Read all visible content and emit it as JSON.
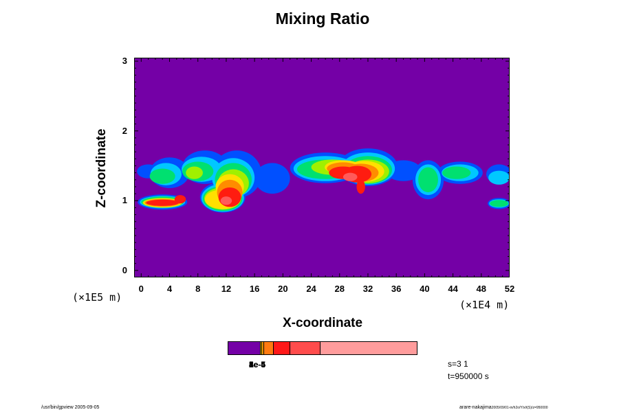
{
  "chart_data": {
    "type": "heatmap",
    "title": "Mixing Ratio",
    "xlabel": "X-coordinate",
    "ylabel": "Z-coordinate",
    "x_unit": "(×1E4 m)",
    "y_unit": "(×1E5 m)",
    "xlim": [
      -1,
      52
    ],
    "ylim": [
      -0.1,
      3.05
    ],
    "x_ticks": [
      "0",
      "4",
      "8",
      "12",
      "16",
      "20",
      "24",
      "28",
      "32",
      "36",
      "40",
      "44",
      "48",
      "52"
    ],
    "y_ticks": [
      "0",
      "1",
      "2",
      "3"
    ],
    "background_color": "#7400a6",
    "colorbar": {
      "segments": [
        {
          "color": "#7400a6",
          "width": 0.17
        },
        {
          "color": "#ffd000",
          "width": 0.01
        },
        {
          "color": "#ffa000",
          "width": 0.01
        },
        {
          "color": "#ff7a10",
          "width": 0.05
        },
        {
          "color": "#ff1818",
          "width": 0.09
        },
        {
          "color": "#ff4c4c",
          "width": 0.16
        },
        {
          "color": "#ff9c9c",
          "width": 0.51
        }
      ],
      "labels": [
        "1e-5",
        "2e-5",
        "3e-5",
        "4e-5",
        "5e-4"
      ]
    },
    "layers": [
      {
        "level": "low",
        "color": "#0050ff",
        "blobs": [
          {
            "x": 1.0,
            "z": 1.42,
            "rx": 1.6,
            "rz": 0.1
          },
          {
            "x": 4.0,
            "z": 1.4,
            "rx": 2.8,
            "rz": 0.22
          },
          {
            "x": 9.0,
            "z": 1.48,
            "rx": 3.2,
            "rz": 0.24
          },
          {
            "x": 13.5,
            "z": 1.38,
            "rx": 3.5,
            "rz": 0.34
          },
          {
            "x": 18.5,
            "z": 1.32,
            "rx": 2.5,
            "rz": 0.22
          },
          {
            "x": 26.0,
            "z": 1.47,
            "rx": 5.0,
            "rz": 0.22
          },
          {
            "x": 32.0,
            "z": 1.48,
            "rx": 4.2,
            "rz": 0.27
          },
          {
            "x": 37.0,
            "z": 1.43,
            "rx": 2.5,
            "rz": 0.15
          },
          {
            "x": 40.5,
            "z": 1.3,
            "rx": 2.2,
            "rz": 0.28
          },
          {
            "x": 45.0,
            "z": 1.4,
            "rx": 3.2,
            "rz": 0.16
          },
          {
            "x": 50.5,
            "z": 1.38,
            "rx": 1.8,
            "rz": 0.14
          },
          {
            "x": 3.0,
            "z": 0.98,
            "rx": 3.5,
            "rz": 0.11
          },
          {
            "x": 11.5,
            "z": 1.05,
            "rx": 3.2,
            "rz": 0.22
          },
          {
            "x": 50.5,
            "z": 0.96,
            "rx": 1.6,
            "rz": 0.08
          }
        ]
      },
      {
        "level": "mid-low",
        "color": "#00c8ff",
        "blobs": [
          {
            "x": 3.5,
            "z": 1.38,
            "rx": 2.2,
            "rz": 0.16
          },
          {
            "x": 8.5,
            "z": 1.45,
            "rx": 2.8,
            "rz": 0.18
          },
          {
            "x": 13.0,
            "z": 1.33,
            "rx": 3.0,
            "rz": 0.28
          },
          {
            "x": 26.0,
            "z": 1.46,
            "rx": 4.5,
            "rz": 0.18
          },
          {
            "x": 32.0,
            "z": 1.46,
            "rx": 3.8,
            "rz": 0.23
          },
          {
            "x": 40.5,
            "z": 1.3,
            "rx": 1.8,
            "rz": 0.22
          },
          {
            "x": 45.0,
            "z": 1.4,
            "rx": 2.6,
            "rz": 0.12
          },
          {
            "x": 50.5,
            "z": 1.33,
            "rx": 1.5,
            "rz": 0.1
          },
          {
            "x": 3.0,
            "z": 0.98,
            "rx": 3.2,
            "rz": 0.09
          },
          {
            "x": 11.5,
            "z": 1.04,
            "rx": 3.0,
            "rz": 0.2
          },
          {
            "x": 50.5,
            "z": 0.96,
            "rx": 1.4,
            "rz": 0.06
          }
        ]
      },
      {
        "level": "mid",
        "color": "#00e070",
        "blobs": [
          {
            "x": 3.0,
            "z": 1.35,
            "rx": 1.8,
            "rz": 0.11
          },
          {
            "x": 8.0,
            "z": 1.42,
            "rx": 2.2,
            "rz": 0.14
          },
          {
            "x": 13.0,
            "z": 1.3,
            "rx": 2.6,
            "rz": 0.24
          },
          {
            "x": 26.0,
            "z": 1.45,
            "rx": 4.0,
            "rz": 0.14
          },
          {
            "x": 32.0,
            "z": 1.44,
            "rx": 3.4,
            "rz": 0.2
          },
          {
            "x": 40.5,
            "z": 1.3,
            "rx": 1.4,
            "rz": 0.18
          },
          {
            "x": 44.5,
            "z": 1.4,
            "rx": 2.0,
            "rz": 0.09
          },
          {
            "x": 3.0,
            "z": 0.98,
            "rx": 3.0,
            "rz": 0.08
          },
          {
            "x": 11.5,
            "z": 1.03,
            "rx": 2.8,
            "rz": 0.18
          },
          {
            "x": 50.5,
            "z": 0.96,
            "rx": 1.3,
            "rz": 0.05
          }
        ]
      },
      {
        "level": "mid-high",
        "color": "#a0f000",
        "blobs": [
          {
            "x": 7.5,
            "z": 1.4,
            "rx": 1.2,
            "rz": 0.09
          },
          {
            "x": 13.0,
            "z": 1.25,
            "rx": 2.2,
            "rz": 0.2
          },
          {
            "x": 27.0,
            "z": 1.48,
            "rx": 3.0,
            "rz": 0.11
          },
          {
            "x": 32.0,
            "z": 1.42,
            "rx": 3.0,
            "rz": 0.17
          },
          {
            "x": 3.0,
            "z": 0.97,
            "rx": 2.8,
            "rz": 0.07
          },
          {
            "x": 11.5,
            "z": 1.03,
            "rx": 2.6,
            "rz": 0.16
          }
        ]
      },
      {
        "level": "high",
        "color": "#ffe000",
        "blobs": [
          {
            "x": 12.5,
            "z": 1.2,
            "rx": 2.0,
            "rz": 0.18
          },
          {
            "x": 28.5,
            "z": 1.48,
            "rx": 2.6,
            "rz": 0.1
          },
          {
            "x": 31.5,
            "z": 1.42,
            "rx": 2.8,
            "rz": 0.15
          },
          {
            "x": 3.0,
            "z": 0.97,
            "rx": 2.7,
            "rz": 0.065
          },
          {
            "x": 11.5,
            "z": 1.02,
            "rx": 2.5,
            "rz": 0.14
          }
        ]
      },
      {
        "level": "higher",
        "color": "#ff8c00",
        "blobs": [
          {
            "x": 12.5,
            "z": 1.12,
            "rx": 1.8,
            "rz": 0.18
          },
          {
            "x": 28.5,
            "z": 1.46,
            "rx": 2.3,
            "rz": 0.09
          },
          {
            "x": 31.0,
            "z": 1.4,
            "rx": 2.5,
            "rz": 0.13
          },
          {
            "x": 3.0,
            "z": 0.97,
            "rx": 2.5,
            "rz": 0.055
          }
        ]
      },
      {
        "level": "highest",
        "color": "#ff1c10",
        "blobs": [
          {
            "x": 12.5,
            "z": 1.05,
            "rx": 1.6,
            "rz": 0.14
          },
          {
            "x": 28.5,
            "z": 1.4,
            "rx": 2.0,
            "rz": 0.09
          },
          {
            "x": 30.5,
            "z": 1.38,
            "rx": 2.0,
            "rz": 0.12
          },
          {
            "x": 31.0,
            "z": 1.2,
            "rx": 0.6,
            "rz": 0.1
          },
          {
            "x": 3.0,
            "z": 0.97,
            "rx": 2.3,
            "rz": 0.045
          },
          {
            "x": 5.5,
            "z": 1.02,
            "rx": 0.8,
            "rz": 0.06
          }
        ]
      },
      {
        "level": "peak",
        "color": "#ff5a5a",
        "blobs": [
          {
            "x": 29.5,
            "z": 1.34,
            "rx": 1.0,
            "rz": 0.06
          },
          {
            "x": 12.0,
            "z": 1.0,
            "rx": 0.8,
            "rz": 0.06
          }
        ]
      }
    ]
  },
  "info": {
    "s_text": "s=3 1",
    "t_text": "t=950000 s"
  },
  "footer": {
    "left": "/usr/bin/gpview 2005-09-05",
    "right_main": "arare-nakajima",
    "right_sub": "2005/09/01-in/h2o/Y/x/t(S)/z=950000"
  }
}
